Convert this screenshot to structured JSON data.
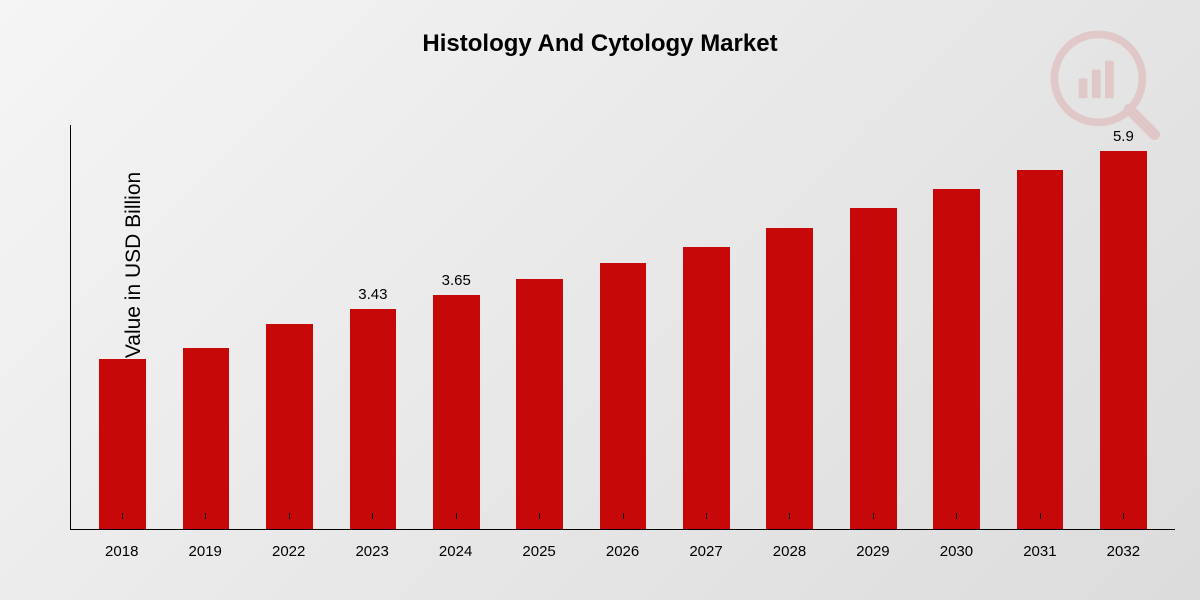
{
  "chart": {
    "type": "bar",
    "title": "Histology And Cytology Market",
    "title_fontsize": 24,
    "title_fontweight": 700,
    "ylabel": "Market Value in USD Billion",
    "ylabel_fontsize": 21,
    "categories": [
      "2018",
      "2019",
      "2022",
      "2023",
      "2024",
      "2025",
      "2026",
      "2027",
      "2028",
      "2029",
      "2030",
      "2031",
      "2032"
    ],
    "values": [
      2.65,
      2.82,
      3.2,
      3.43,
      3.65,
      3.9,
      4.15,
      4.4,
      4.7,
      5.0,
      5.3,
      5.6,
      5.9
    ],
    "value_labels": {
      "3": "3.43",
      "4": "3.65",
      "12": "5.9"
    },
    "ymax": 6.3,
    "bar_color": "#c60809",
    "bar_width_pct": 56,
    "axis_color": "#000000",
    "background_gradient": [
      "#f5f5f5",
      "#e8e8e8",
      "#dcdcdc"
    ],
    "xtick_fontsize": 15,
    "value_label_fontsize": 15,
    "watermark_color": "#c60809",
    "watermark_opacity": 0.12
  }
}
